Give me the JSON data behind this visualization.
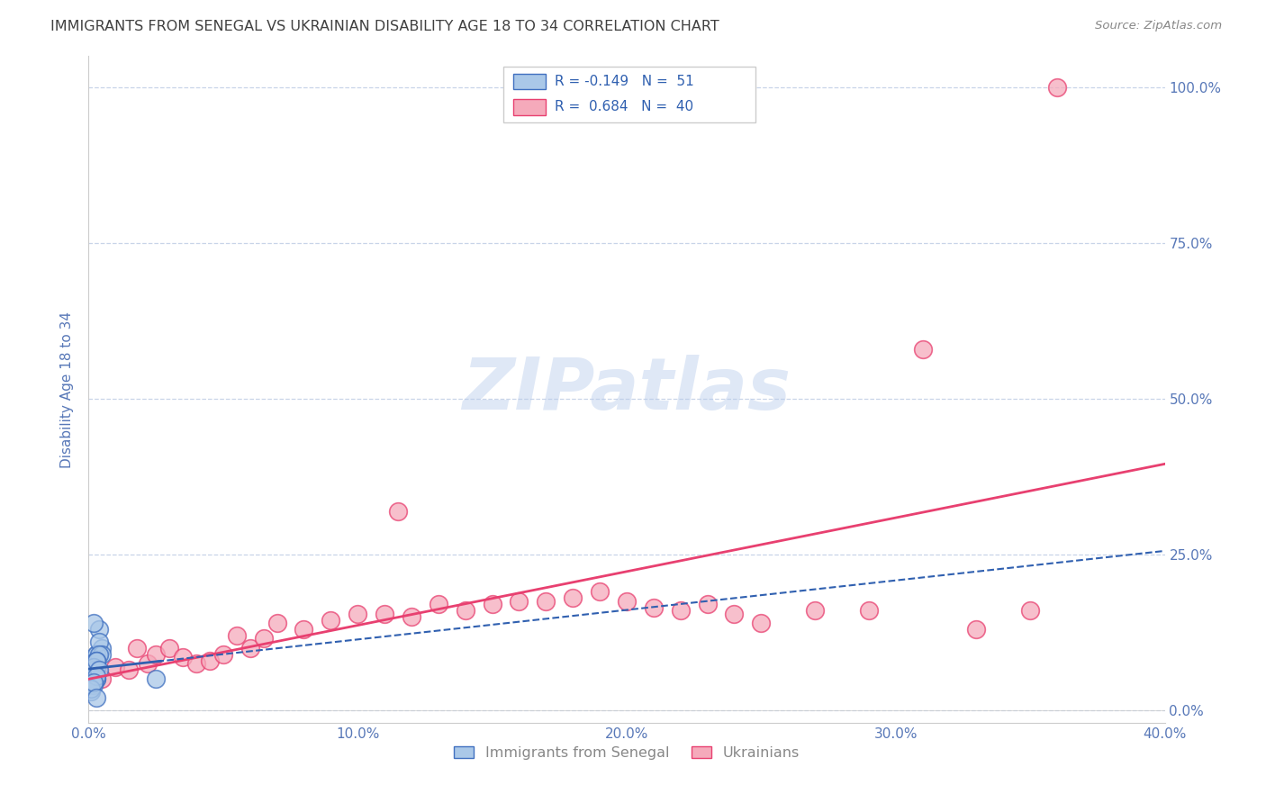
{
  "title": "IMMIGRANTS FROM SENEGAL VS UKRAINIAN DISABILITY AGE 18 TO 34 CORRELATION CHART",
  "source": "Source: ZipAtlas.com",
  "ylabel": "Disability Age 18 to 34",
  "xlim": [
    0.0,
    0.4
  ],
  "ylim": [
    -0.02,
    1.05
  ],
  "xticks": [
    0.0,
    0.1,
    0.2,
    0.3,
    0.4
  ],
  "xtick_labels": [
    "0.0%",
    "10.0%",
    "20.0%",
    "30.0%",
    "40.0%"
  ],
  "yticks": [
    0.0,
    0.25,
    0.5,
    0.75,
    1.0
  ],
  "ytick_labels": [
    "0.0%",
    "25.0%",
    "50.0%",
    "75.0%",
    "100.0%"
  ],
  "blue_color": "#aac8e8",
  "pink_color": "#f5aabb",
  "blue_edge_color": "#4070c0",
  "pink_edge_color": "#e84070",
  "blue_line_color": "#3060b0",
  "pink_line_color": "#e84070",
  "watermark": "ZIPatlas",
  "senegal_x": [
    0.001,
    0.002,
    0.001,
    0.003,
    0.002,
    0.001,
    0.004,
    0.003,
    0.002,
    0.001,
    0.005,
    0.003,
    0.002,
    0.001,
    0.002,
    0.003,
    0.001,
    0.002,
    0.004,
    0.003,
    0.002,
    0.001,
    0.003,
    0.002,
    0.004,
    0.001,
    0.003,
    0.002,
    0.001,
    0.005,
    0.002,
    0.003,
    0.001,
    0.002,
    0.004,
    0.003,
    0.002,
    0.001,
    0.002,
    0.003,
    0.001,
    0.002,
    0.003,
    0.004,
    0.001,
    0.002,
    0.003,
    0.001,
    0.002,
    0.003,
    0.025
  ],
  "senegal_y": [
    0.06,
    0.07,
    0.05,
    0.08,
    0.06,
    0.065,
    0.09,
    0.05,
    0.08,
    0.06,
    0.1,
    0.07,
    0.06,
    0.05,
    0.08,
    0.09,
    0.06,
    0.07,
    0.13,
    0.09,
    0.14,
    0.075,
    0.07,
    0.06,
    0.11,
    0.05,
    0.08,
    0.06,
    0.07,
    0.09,
    0.06,
    0.08,
    0.05,
    0.07,
    0.09,
    0.08,
    0.065,
    0.055,
    0.07,
    0.08,
    0.04,
    0.045,
    0.05,
    0.065,
    0.03,
    0.04,
    0.055,
    0.035,
    0.045,
    0.02,
    0.05
  ],
  "ukrainian_x": [
    0.005,
    0.01,
    0.015,
    0.018,
    0.022,
    0.025,
    0.03,
    0.035,
    0.04,
    0.045,
    0.05,
    0.055,
    0.06,
    0.065,
    0.07,
    0.08,
    0.09,
    0.1,
    0.11,
    0.115,
    0.12,
    0.13,
    0.14,
    0.15,
    0.16,
    0.17,
    0.18,
    0.19,
    0.2,
    0.21,
    0.22,
    0.23,
    0.24,
    0.25,
    0.27,
    0.29,
    0.31,
    0.33,
    0.35,
    0.36
  ],
  "ukrainian_y": [
    0.05,
    0.07,
    0.065,
    0.1,
    0.075,
    0.09,
    0.1,
    0.085,
    0.075,
    0.08,
    0.09,
    0.12,
    0.1,
    0.115,
    0.14,
    0.13,
    0.145,
    0.155,
    0.155,
    0.32,
    0.15,
    0.17,
    0.16,
    0.17,
    0.175,
    0.175,
    0.18,
    0.19,
    0.175,
    0.165,
    0.16,
    0.17,
    0.155,
    0.14,
    0.16,
    0.16,
    0.58,
    0.13,
    0.16,
    1.0
  ],
  "background_color": "#ffffff",
  "grid_color": "#c8d4e8",
  "title_color": "#404040",
  "axis_label_color": "#5878b8",
  "tick_color": "#5878b8"
}
